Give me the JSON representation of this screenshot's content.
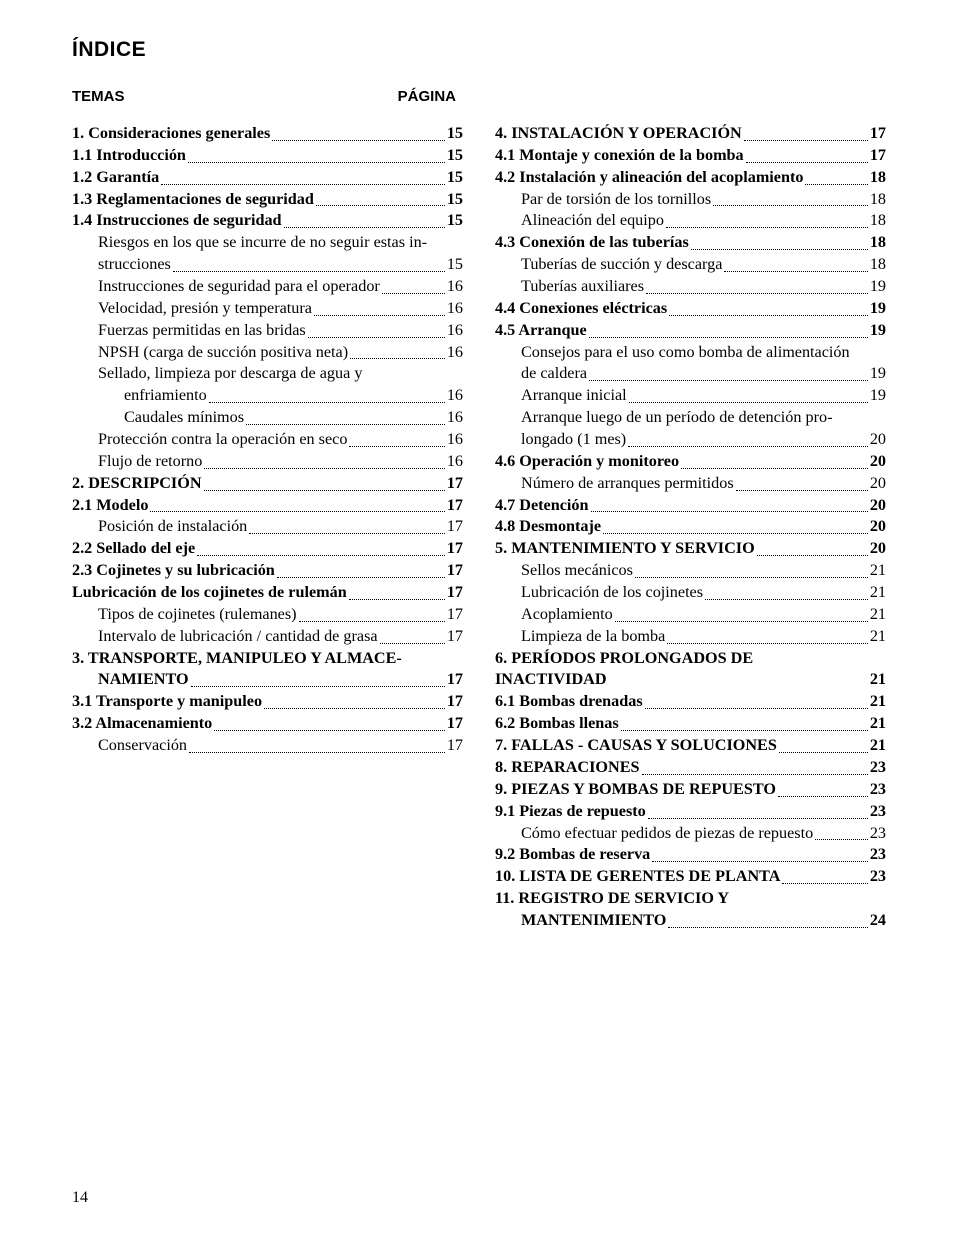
{
  "title": "ÍNDICE",
  "header_left": "TEMAS",
  "header_right": "PÁGINA",
  "footer_page": "14",
  "left": [
    {
      "label": "1. Consideraciones generales",
      "page": "15",
      "bold": true,
      "indent": 0
    },
    {
      "label": "1.1 Introducción",
      "page": "15",
      "bold": true,
      "indent": 0
    },
    {
      "label": "1.2 Garantía",
      "page": "15",
      "bold": true,
      "indent": 0
    },
    {
      "label": "1.3 Reglamentaciones de seguridad",
      "page": "15",
      "bold": true,
      "indent": 0
    },
    {
      "label": "1.4 Instrucciones de seguridad",
      "page": "15",
      "bold": true,
      "indent": 0
    },
    {
      "type": "multi",
      "indent": 1,
      "bold": false,
      "line1": "Riesgos en los que se incurre de no seguir estas in-",
      "line2": "strucciones",
      "page": "15"
    },
    {
      "label": "Instrucciones de seguridad para el operador",
      "page": "16",
      "bold": false,
      "indent": 1
    },
    {
      "label": "Velocidad, presión y temperatura",
      "page": "16",
      "bold": false,
      "indent": 1
    },
    {
      "label": "Fuerzas permitidas en las bridas",
      "page": "16",
      "bold": false,
      "indent": 1
    },
    {
      "label": "NPSH (carga de succión positiva neta)",
      "page": "16",
      "bold": false,
      "indent": 1
    },
    {
      "type": "multi",
      "indent": 1,
      "bold": false,
      "line1": "Sellado, limpieza por descarga de agua y",
      "line2_indent": 2,
      "line2": "enfriamiento",
      "page": "16"
    },
    {
      "label": "Caudales mínimos",
      "page": "16",
      "bold": false,
      "indent": 2
    },
    {
      "label": "Protección contra la operación en seco",
      "page": "16",
      "bold": false,
      "indent": 1
    },
    {
      "label": "Flujo de retorno",
      "page": "16",
      "bold": false,
      "indent": 1
    },
    {
      "label": "2. DESCRIPCIÓN",
      "page": "17",
      "bold": true,
      "indent": 0
    },
    {
      "label": "2.1 Modelo",
      "page": "17",
      "bold": true,
      "indent": 0
    },
    {
      "label": "Posición de instalación",
      "page": "17",
      "bold": false,
      "indent": 1
    },
    {
      "label": "2.2 Sellado del eje",
      "page": "17",
      "bold": true,
      "indent": 0
    },
    {
      "label": "2.3 Cojinetes y su lubricación",
      "page": "17",
      "bold": true,
      "indent": 0
    },
    {
      "label": "Lubricación de los cojinetes de rulemán",
      "page": "17",
      "bold": true,
      "indent": 0
    },
    {
      "label": "Tipos de cojinetes (rulemanes)",
      "page": "17",
      "bold": false,
      "indent": 1
    },
    {
      "label": "Intervalo de lubricación / cantidad de grasa",
      "page": "17",
      "bold": false,
      "indent": 1
    },
    {
      "type": "multi",
      "indent": 0,
      "bold": true,
      "line1": "3. TRANSPORTE, MANIPULEO Y ALMACE-",
      "line2_indent": 1,
      "line2": "NAMIENTO",
      "page": "17"
    },
    {
      "label": "3.1 Transporte y manipuleo",
      "page": "17",
      "bold": true,
      "indent": 0
    },
    {
      "label": "3.2 Almacenamiento",
      "page": "17",
      "bold": true,
      "indent": 0
    },
    {
      "label": "Conservación",
      "page": "17",
      "bold": false,
      "indent": 1
    }
  ],
  "right": [
    {
      "label": "4. INSTALACIÓN Y OPERACIÓN",
      "page": "17",
      "bold": true,
      "indent": 0
    },
    {
      "label": "4.1 Montaje y conexión de la bomba",
      "page": "17",
      "bold": true,
      "indent": 0
    },
    {
      "label": "4.2 Instalación y alineación del acoplamiento",
      "page": "18",
      "bold": true,
      "indent": 0
    },
    {
      "label": "Par de torsión de los tornillos",
      "page": "18",
      "bold": false,
      "indent": 1
    },
    {
      "label": "Alineación del equipo",
      "page": "18",
      "bold": false,
      "indent": 1
    },
    {
      "label": "4.3 Conexión de las tuberías",
      "page": "18",
      "bold": true,
      "indent": 0
    },
    {
      "label": "Tuberías de succión y descarga",
      "page": "18",
      "bold": false,
      "indent": 1
    },
    {
      "label": "Tuberías auxiliares",
      "page": "19",
      "bold": false,
      "indent": 1
    },
    {
      "label": "4.4 Conexiones eléctricas",
      "page": "19",
      "bold": true,
      "indent": 0
    },
    {
      "label": "4.5 Arranque",
      "page": "19",
      "bold": true,
      "indent": 0
    },
    {
      "type": "multi",
      "indent": 1,
      "bold": false,
      "line1": "Consejos para el uso como bomba de alimentación",
      "line2": "de caldera",
      "page": "19"
    },
    {
      "label": "Arranque inicial",
      "page": "19",
      "bold": false,
      "indent": 1
    },
    {
      "type": "multi",
      "indent": 1,
      "bold": false,
      "line1": "Arranque luego de un período de detención pro-",
      "line2": "longado (1 mes)",
      "page": "20"
    },
    {
      "label": "4.6 Operación y monitoreo",
      "page": "20",
      "bold": true,
      "indent": 0
    },
    {
      "label": "Número de arranques permitidos",
      "page": "20",
      "bold": false,
      "indent": 1
    },
    {
      "label": "4.7 Detención",
      "page": "20",
      "bold": true,
      "indent": 0
    },
    {
      "label": "4.8 Desmontaje",
      "page": "20",
      "bold": true,
      "indent": 0
    },
    {
      "label": "5. MANTENIMIENTO Y SERVICIO",
      "page": "20",
      "bold": true,
      "indent": 0
    },
    {
      "label": "Sellos mecánicos",
      "page": "21",
      "bold": false,
      "indent": 1
    },
    {
      "label": "Lubricación de los cojinetes",
      "page": "21",
      "bold": false,
      "indent": 1
    },
    {
      "label": "Acoplamiento",
      "page": "21",
      "bold": false,
      "indent": 1
    },
    {
      "label": "Limpieza de la bomba",
      "page": "21",
      "bold": false,
      "indent": 1
    },
    {
      "label": "6. PERÍODOS PROLONGADOS DE INACTIVIDAD",
      "page": "21",
      "bold": true,
      "indent": 0,
      "tight": true
    },
    {
      "label": "6.1 Bombas drenadas",
      "page": "21",
      "bold": true,
      "indent": 0
    },
    {
      "label": "6.2 Bombas llenas",
      "page": "21",
      "bold": true,
      "indent": 0
    },
    {
      "label": "7. FALLAS - CAUSAS Y SOLUCIONES",
      "page": "21",
      "bold": true,
      "indent": 0
    },
    {
      "label": "8. REPARACIONES",
      "page": "23",
      "bold": true,
      "indent": 0
    },
    {
      "label": "9. PIEZAS Y BOMBAS DE REPUESTO",
      "page": "23",
      "bold": true,
      "indent": 0
    },
    {
      "label": "9.1 Piezas de repuesto",
      "page": "23",
      "bold": true,
      "indent": 0
    },
    {
      "label": "Cómo efectuar pedidos de piezas de repuesto",
      "page": "23",
      "bold": false,
      "indent": 1
    },
    {
      "label": "9.2 Bombas de reserva",
      "page": "23",
      "bold": true,
      "indent": 0
    },
    {
      "label": "10. LISTA DE GERENTES DE PLANTA",
      "page": "23",
      "bold": true,
      "indent": 0
    },
    {
      "type": "multi",
      "indent": 0,
      "bold": true,
      "line1": "11. REGISTRO DE SERVICIO Y",
      "line2_indent": 1,
      "line2": "MANTENIMIENTO",
      "page": "24"
    }
  ]
}
